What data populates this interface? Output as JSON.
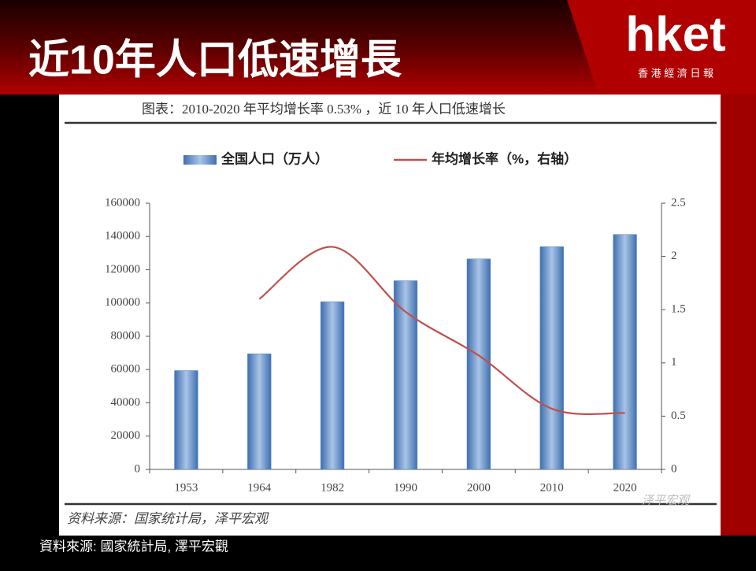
{
  "page": {
    "title": "近10年人口低速增長",
    "brand": "hket",
    "brand_sub": "香 港 經 濟 日 報",
    "source": "資料來源: 國家統計局, 澤平宏觀"
  },
  "chart_data": {
    "type": "bar",
    "title": "图表：2010-2020 年平均增长率 0.53% ，近 10 年人口低速增长",
    "source": "资料来源：国家统计局，泽平宏观",
    "watermark": "泽平宏观",
    "categories": [
      "1953",
      "1964",
      "1982",
      "1990",
      "2000",
      "2010",
      "2020"
    ],
    "series": [
      {
        "name": "全国人口（万人）",
        "type": "bar",
        "color": "#4f81bd",
        "values": [
          59400,
          69500,
          100800,
          113400,
          126500,
          133900,
          141200
        ]
      },
      {
        "name": "年均增长率（%，右轴）",
        "type": "line",
        "axis": "y2",
        "color": "#c0504d",
        "values": [
          null,
          1.6,
          2.09,
          1.48,
          1.07,
          0.57,
          0.53
        ]
      }
    ],
    "ylim": [
      0,
      160000
    ],
    "yticks": [
      0,
      20000,
      40000,
      60000,
      80000,
      100000,
      120000,
      140000,
      160000
    ],
    "y2lim": [
      0,
      2.5
    ],
    "y2ticks": [
      0,
      0.5,
      1,
      1.5,
      2,
      2.5
    ],
    "grid": false,
    "legend": "top"
  }
}
